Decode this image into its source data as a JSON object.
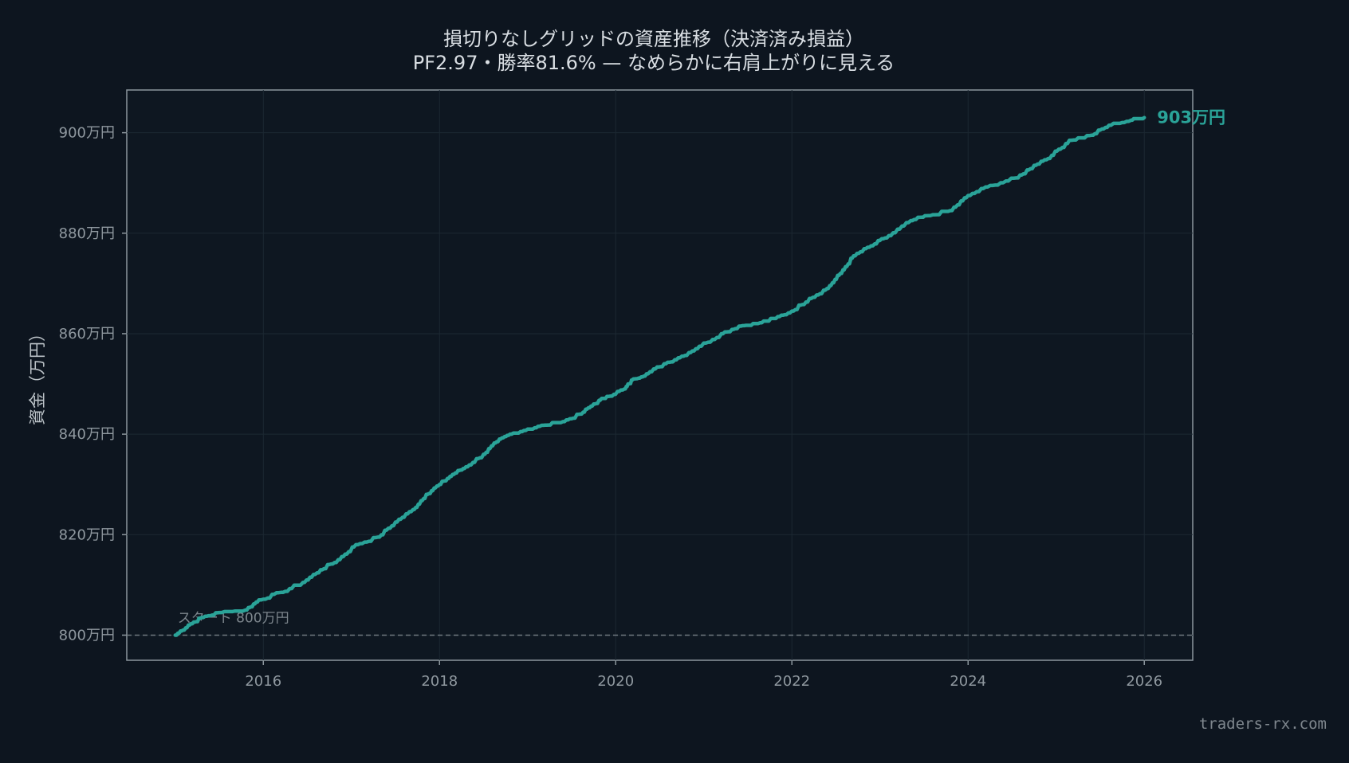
{
  "chart_data": {
    "type": "line",
    "title": "損切りなしグリッドの資産推移（決済済み損益）",
    "subtitle": "PF2.97・勝率81.6% — なめらかに右肩上がりに見える",
    "xlabel": "",
    "ylabel": "資金（万円）",
    "xlim": [
      2014.45,
      2026.55
    ],
    "ylim": [
      795,
      908.5
    ],
    "x_ticks": [
      2016,
      2018,
      2020,
      2022,
      2024,
      2026
    ],
    "x_tick_labels": [
      "2016",
      "2018",
      "2020",
      "2022",
      "2024",
      "2026"
    ],
    "y_ticks": [
      800,
      820,
      840,
      860,
      880,
      900
    ],
    "y_tick_labels": [
      "800万円",
      "820万円",
      "840万円",
      "860万円",
      "880万円",
      "900万円"
    ],
    "grid": true,
    "line_color": "#2aa398",
    "baseline": {
      "value": 800,
      "label": "スタート 800万円"
    },
    "end_label": "903万円",
    "series": [
      {
        "name": "",
        "x": [
          2015.0,
          2015.15,
          2015.3,
          2015.5,
          2015.8,
          2015.95,
          2016.2,
          2016.45,
          2016.65,
          2016.85,
          2017.05,
          2017.3,
          2017.5,
          2017.7,
          2017.85,
          2018.0,
          2018.15,
          2018.3,
          2018.5,
          2018.65,
          2018.8,
          2019.0,
          2019.2,
          2019.4,
          2019.6,
          2019.75,
          2019.9,
          2020.1,
          2020.2,
          2020.35,
          2020.55,
          2020.75,
          2020.95,
          2021.2,
          2021.4,
          2021.6,
          2021.8,
          2022.0,
          2022.2,
          2022.4,
          2022.55,
          2022.7,
          2022.9,
          2023.1,
          2023.35,
          2023.55,
          2023.8,
          2024.0,
          2024.25,
          2024.55,
          2024.75,
          2024.95,
          2025.15,
          2025.4,
          2025.6,
          2025.85,
          2026.0
        ],
        "values": [
          800.0,
          802.0,
          803.5,
          804.5,
          805.0,
          807.0,
          808.5,
          810.5,
          813.0,
          815.0,
          818.0,
          819.5,
          822.5,
          825.0,
          828.0,
          830.0,
          832.0,
          833.5,
          836.0,
          838.5,
          840.0,
          841.0,
          841.8,
          842.5,
          844.0,
          846.0,
          847.5,
          849.0,
          851.0,
          852.0,
          854.0,
          855.5,
          857.5,
          860.0,
          861.5,
          862.0,
          863.0,
          864.5,
          867.0,
          869.0,
          872.0,
          875.5,
          877.5,
          879.5,
          882.5,
          883.5,
          884.5,
          887.5,
          889.5,
          891.0,
          893.5,
          895.5,
          898.5,
          899.5,
          901.5,
          902.5,
          903.0
        ]
      }
    ]
  },
  "footer": {
    "watermark": "traders-rx.com"
  }
}
